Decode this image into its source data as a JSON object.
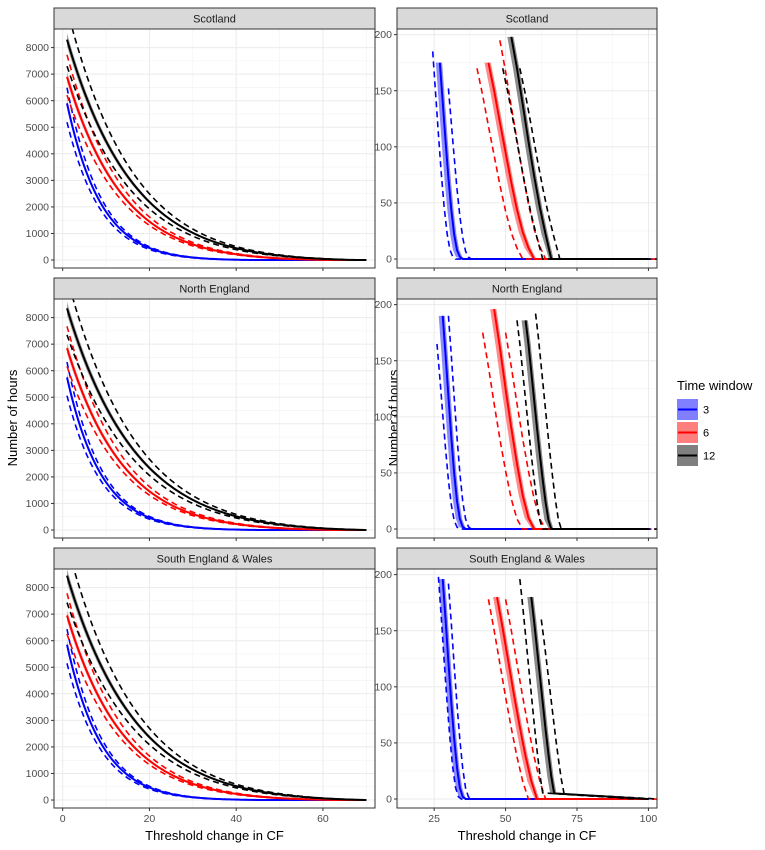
{
  "chart_data": {
    "type": "line",
    "ylabel": "Number of hours",
    "xlabel_left": "Threshold change in CF",
    "xlabel_right": "Threshold change in CF",
    "legend": {
      "title": "Time window",
      "placement": "right",
      "entries": [
        {
          "label": "3",
          "color": "#0000ff"
        },
        {
          "label": "6",
          "color": "#ff0000"
        },
        {
          "label": "12",
          "color": "#000000"
        }
      ]
    },
    "grid": true,
    "left_panels": {
      "xlim": [
        -2,
        72
      ],
      "ylim": [
        -300,
        8700
      ],
      "xticks": [
        0,
        20,
        40,
        60
      ],
      "yticks": [
        0,
        1000,
        2000,
        3000,
        4000,
        5000,
        6000,
        7000,
        8000
      ]
    },
    "right_panels": {
      "xlim": [
        12,
        103
      ],
      "ylim": [
        -8,
        205
      ],
      "xticks": [
        25,
        50,
        75,
        100
      ],
      "yticks": [
        0,
        50,
        100,
        150,
        200
      ]
    },
    "regions": [
      {
        "name": "Scotland",
        "left": {
          "series": [
            {
              "window": "3",
              "color": "#0000ff",
              "y0": 5900,
              "decay": 9.5,
              "end": 45,
              "lo": 0.88,
              "hi": 1.1
            },
            {
              "window": "6",
              "color": "#ff0000",
              "y0": 6900,
              "decay": 16,
              "end": 62,
              "lo": 0.9,
              "hi": 1.12
            },
            {
              "window": "12",
              "color": "#000000",
              "y0": 8300,
              "decay": 19,
              "end": 68,
              "lo": 0.88,
              "hi": 1.14
            }
          ]
        },
        "right": {
          "series": [
            {
              "window": "3",
              "color": "#0000ff",
              "x": [
                27,
                28,
                29,
                30,
                31,
                32,
                33,
                34,
                35,
                100
              ],
              "y": [
                175,
                140,
                105,
                72,
                44,
                22,
                8,
                2,
                0,
                0
              ],
              "dash_lo": -2.5,
              "dash_hi": 3,
              "dash_top_lo": 185,
              "dash_top_hi": 152
            },
            {
              "window": "6",
              "color": "#ff0000",
              "x": [
                44,
                46,
                48,
                50,
                52,
                54,
                56,
                58,
                60,
                100
              ],
              "y": [
                175,
                150,
                122,
                95,
                68,
                44,
                24,
                10,
                0,
                0
              ],
              "dash_lo": -4,
              "dash_hi": 4,
              "dash_top_lo": 170,
              "dash_top_hi": 195
            },
            {
              "window": "12",
              "color": "#000000",
              "x": [
                52,
                54,
                56,
                58,
                60,
                62,
                64,
                66,
                100
              ],
              "y": [
                198,
                170,
                138,
                105,
                74,
                46,
                22,
                0,
                0
              ],
              "dash_lo": -3,
              "dash_hi": 3,
              "dash_top_lo": 170,
              "dash_top_hi": 170
            }
          ]
        }
      },
      {
        "name": "North England",
        "left": {
          "series": [
            {
              "window": "3",
              "color": "#0000ff",
              "y0": 5750,
              "decay": 9.5,
              "end": 48,
              "lo": 0.88,
              "hi": 1.1
            },
            {
              "window": "6",
              "color": "#ff0000",
              "y0": 6850,
              "decay": 16,
              "end": 64,
              "lo": 0.9,
              "hi": 1.12
            },
            {
              "window": "12",
              "color": "#000000",
              "y0": 8350,
              "decay": 20,
              "end": 70,
              "lo": 0.88,
              "hi": 1.14
            }
          ]
        },
        "right": {
          "series": [
            {
              "window": "3",
              "color": "#0000ff",
              "x": [
                28,
                29,
                30,
                31,
                32,
                33,
                34,
                35,
                36,
                100
              ],
              "y": [
                190,
                155,
                118,
                82,
                50,
                25,
                9,
                2,
                0,
                0
              ],
              "dash_lo": -2,
              "dash_hi": 2,
              "dash_top_lo": 165,
              "dash_top_hi": 190
            },
            {
              "window": "6",
              "color": "#ff0000",
              "x": [
                46,
                48,
                50,
                52,
                54,
                56,
                58,
                60,
                100
              ],
              "y": [
                196,
                162,
                125,
                90,
                58,
                30,
                10,
                0,
                0
              ],
              "dash_lo": -4,
              "dash_hi": 4,
              "dash_top_lo": 175,
              "dash_top_hi": 175
            },
            {
              "window": "12",
              "color": "#000000",
              "x": [
                57,
                58,
                59,
                60,
                61,
                62,
                63,
                64,
                65,
                66,
                100
              ],
              "y": [
                186,
                165,
                140,
                115,
                90,
                66,
                44,
                24,
                8,
                0,
                0
              ],
              "dash_lo": -3,
              "dash_hi": 3.5,
              "dash_top_lo": 186,
              "dash_top_hi": 192
            }
          ]
        }
      },
      {
        "name": "South England & Wales",
        "left": {
          "series": [
            {
              "window": "3",
              "color": "#0000ff",
              "y0": 5850,
              "decay": 9.5,
              "end": 48,
              "lo": 0.88,
              "hi": 1.1
            },
            {
              "window": "6",
              "color": "#ff0000",
              "y0": 6950,
              "decay": 16,
              "end": 64,
              "lo": 0.9,
              "hi": 1.12
            },
            {
              "window": "12",
              "color": "#000000",
              "y0": 8450,
              "decay": 20,
              "end": 70,
              "lo": 0.88,
              "hi": 1.14
            }
          ]
        },
        "right": {
          "series": [
            {
              "window": "3",
              "color": "#0000ff",
              "x": [
                28,
                29,
                30,
                31,
                32,
                33,
                34,
                35,
                36,
                100
              ],
              "y": [
                196,
                160,
                122,
                86,
                54,
                28,
                10,
                2,
                0,
                0
              ],
              "dash_lo": -1.5,
              "dash_hi": 2,
              "dash_top_lo": 198,
              "dash_top_hi": 192
            },
            {
              "window": "6",
              "color": "#ff0000",
              "x": [
                47,
                49,
                51,
                53,
                55,
                57,
                59,
                61,
                100
              ],
              "y": [
                180,
                152,
                122,
                92,
                64,
                38,
                16,
                0,
                0
              ],
              "dash_lo": -3,
              "dash_hi": 3,
              "dash_top_lo": 178,
              "dash_top_hi": 178
            },
            {
              "window": "12",
              "color": "#000000",
              "x": [
                59,
                60,
                61,
                62,
                63,
                64,
                65,
                66,
                67,
                100
              ],
              "y": [
                180,
                158,
                134,
                110,
                86,
                62,
                40,
                20,
                5,
                0
              ],
              "dash_lo": -4,
              "dash_hi": 3.5,
              "dash_top_lo": 196,
              "dash_top_hi": 160
            }
          ]
        }
      }
    ]
  }
}
